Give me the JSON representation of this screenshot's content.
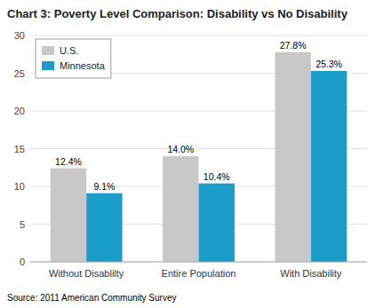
{
  "chart_data": {
    "type": "bar",
    "title": "Chart 3: Poverty Level Comparison: Disability vs No Disability",
    "categories": [
      "Without Disablilty",
      "Entire Population",
      "With Disability"
    ],
    "series": [
      {
        "name": "U.S.",
        "color": "#c8c8c8",
        "values": [
          12.4,
          14.0,
          27.8
        ],
        "value_labels": [
          "12.4%",
          "14.0%",
          "27.8%"
        ]
      },
      {
        "name": "Minnesota",
        "color": "#1a9ec9",
        "values": [
          9.1,
          10.4,
          25.3
        ],
        "value_labels": [
          "9.1%",
          "10.4%",
          "25.3%"
        ]
      }
    ],
    "ylim": [
      0,
      30
    ],
    "yticks": [
      0,
      5,
      10,
      15,
      20,
      25,
      30
    ],
    "grid": true,
    "legend": "upper left",
    "data_labels": true,
    "annotations": [
      "Source: 2011 American Community Survey"
    ]
  }
}
